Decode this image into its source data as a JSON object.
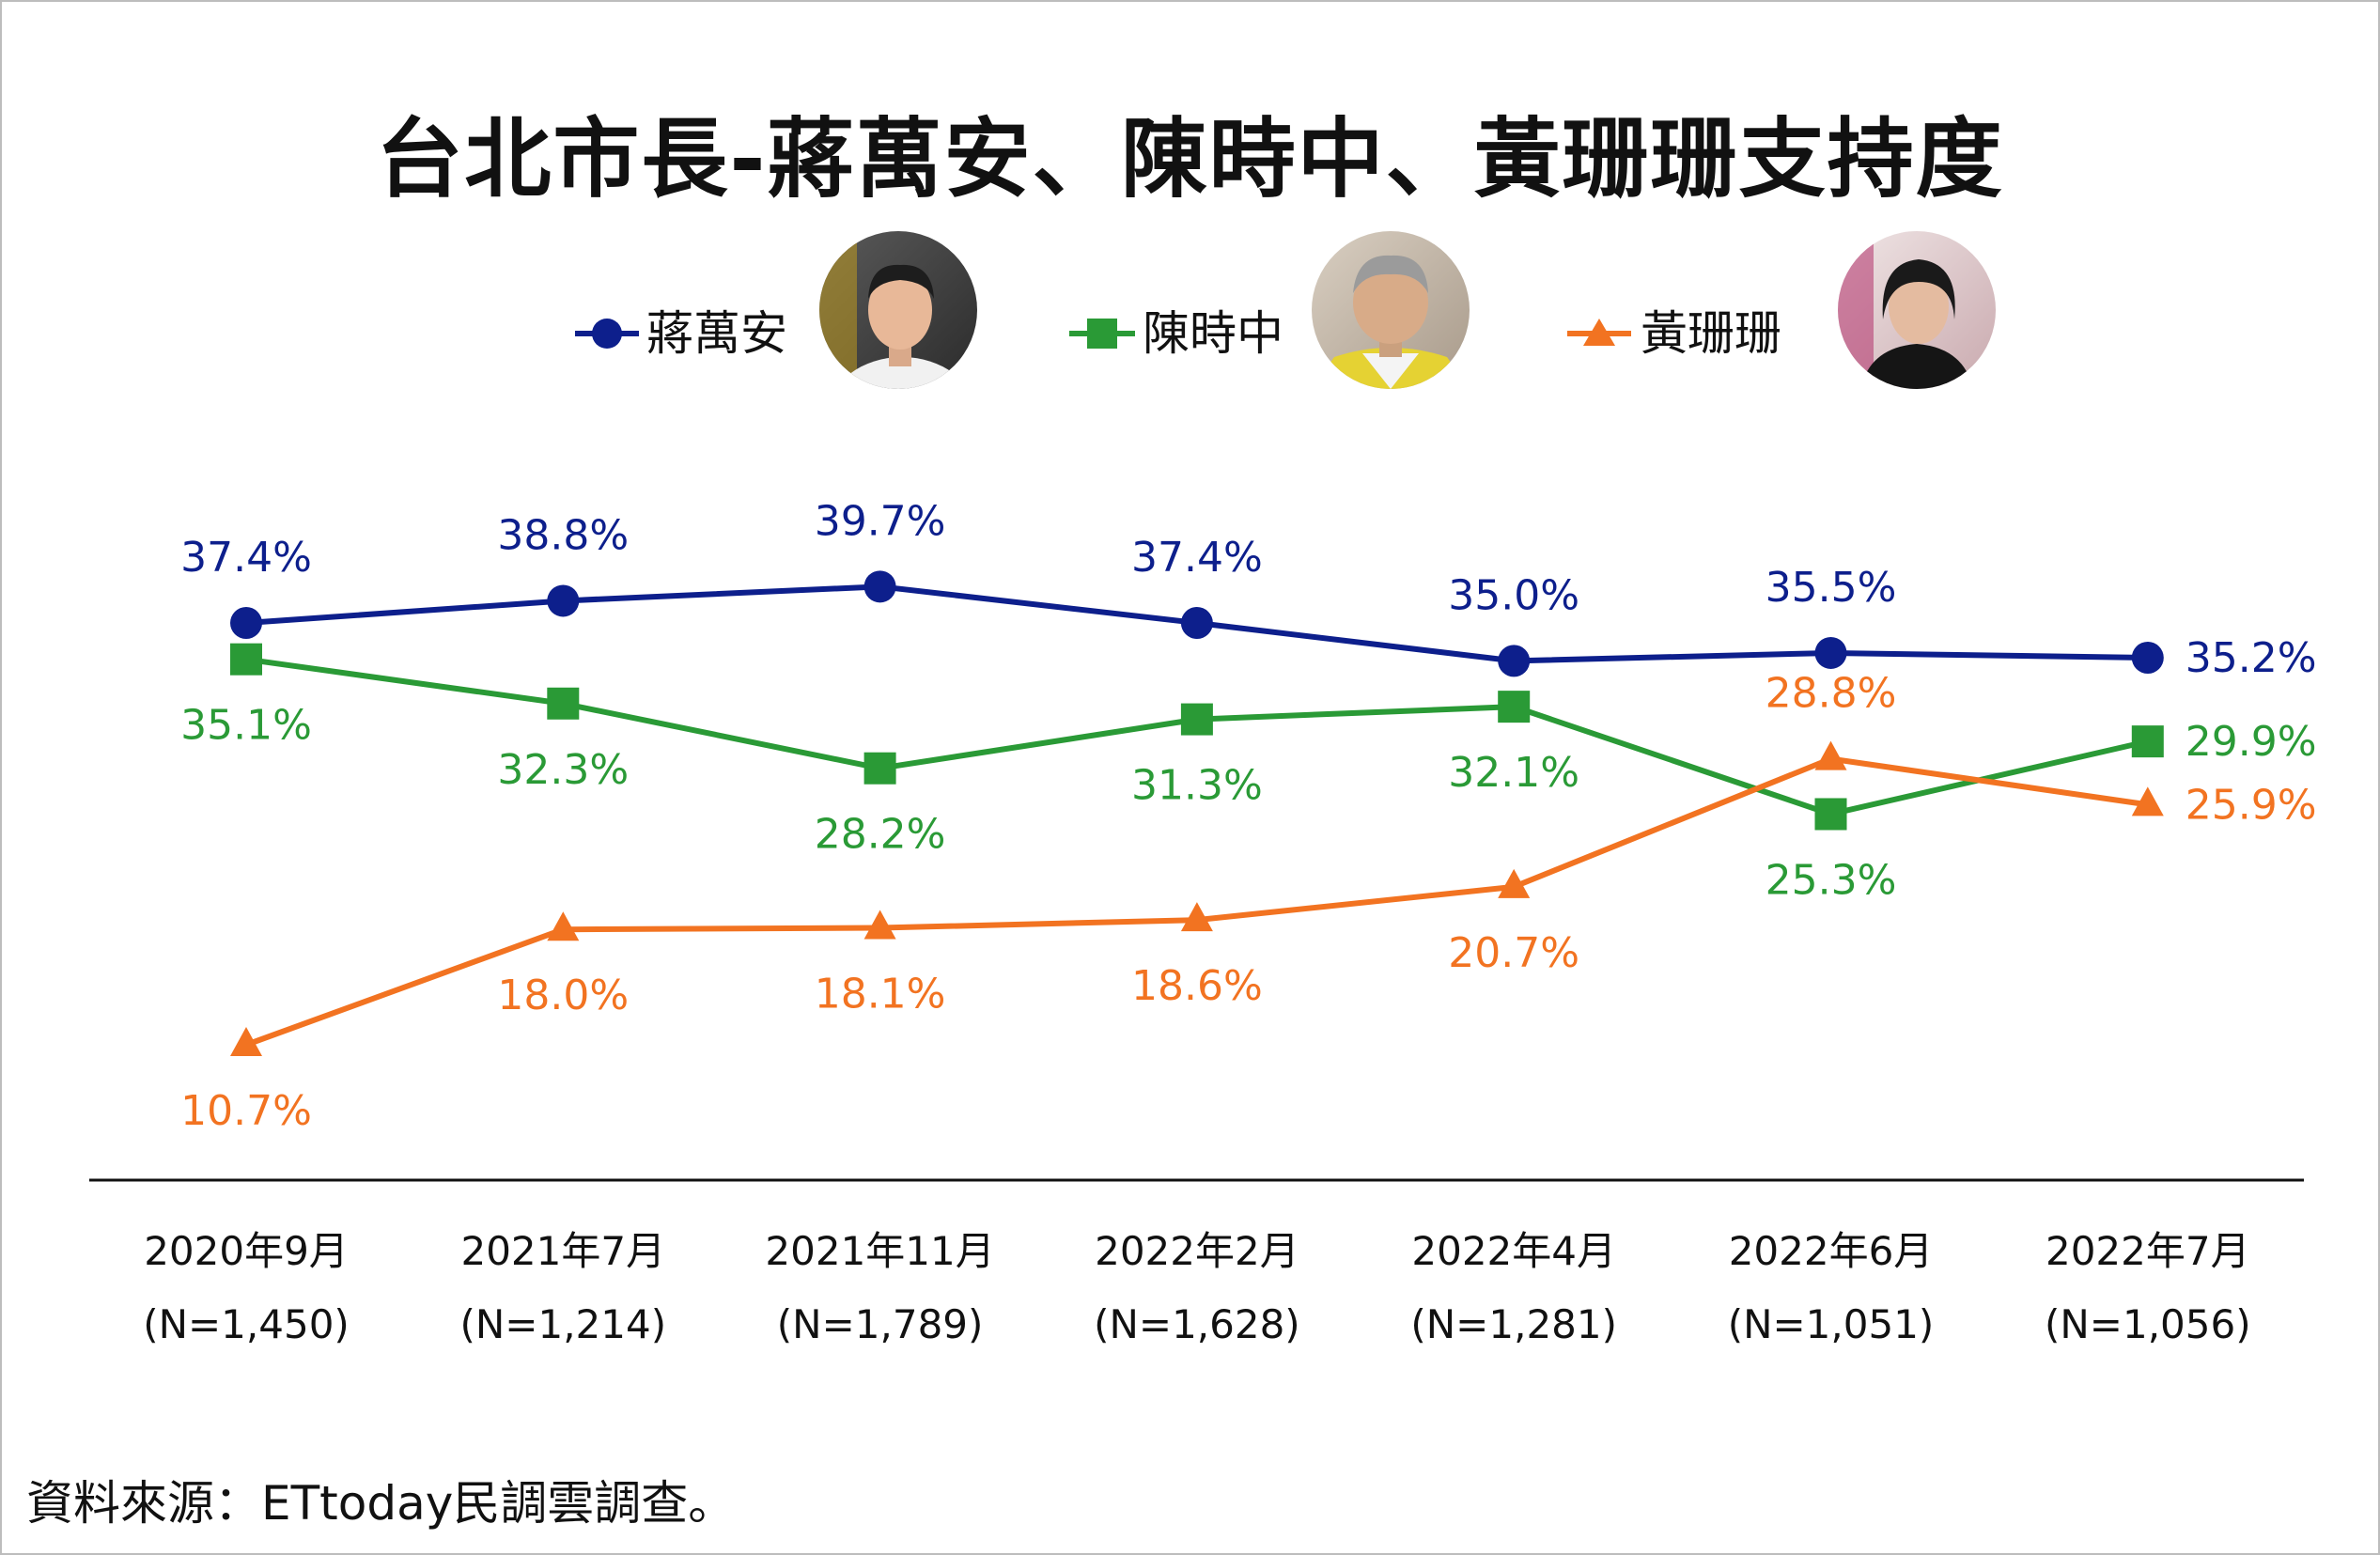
{
  "chart_data": {
    "type": "line",
    "title": "台北市長-蔣萬安、陳時中、黃珊珊支持度",
    "categories": [
      "2020年9月",
      "2021年7月",
      "2021年11月",
      "2022年2月",
      "2022年4月",
      "2022年6月",
      "2022年7月"
    ],
    "sample_sizes": [
      "(N=1,450)",
      "(N=1,214)",
      "(N=1,789)",
      "(N=1,628)",
      "(N=1,281)",
      "(N=1,051)",
      "(N=1,056)"
    ],
    "series": [
      {
        "name": "蔣萬安",
        "values": [
          37.4,
          38.8,
          39.7,
          37.4,
          35.0,
          35.5,
          35.2
        ],
        "labels": [
          "37.4%",
          "38.8%",
          "39.7%",
          "37.4%",
          "35.0%",
          "35.5%",
          "35.2%"
        ],
        "color": "#0d1f8c",
        "marker": "circle",
        "avatar": "photo-jiang"
      },
      {
        "name": "陳時中",
        "values": [
          35.1,
          32.3,
          28.2,
          31.3,
          32.1,
          25.3,
          29.9
        ],
        "labels": [
          "35.1%",
          "32.3%",
          "28.2%",
          "31.3%",
          "32.1%",
          "25.3%",
          "29.9%"
        ],
        "color": "#2a9a36",
        "marker": "square",
        "avatar": "photo-chen"
      },
      {
        "name": "黃珊珊",
        "values": [
          10.7,
          18.0,
          18.1,
          18.6,
          20.7,
          28.8,
          25.9
        ],
        "labels": [
          "10.7%",
          "18.0%",
          "18.1%",
          "18.6%",
          "20.7%",
          "28.8%",
          "25.9%"
        ],
        "color": "#f27321",
        "marker": "triangle",
        "avatar": "photo-huang"
      }
    ],
    "ylim": [
      8,
      42
    ],
    "grid": false,
    "legend_position": "top"
  },
  "source": "資料來源：ETtoday民調雲調查。"
}
